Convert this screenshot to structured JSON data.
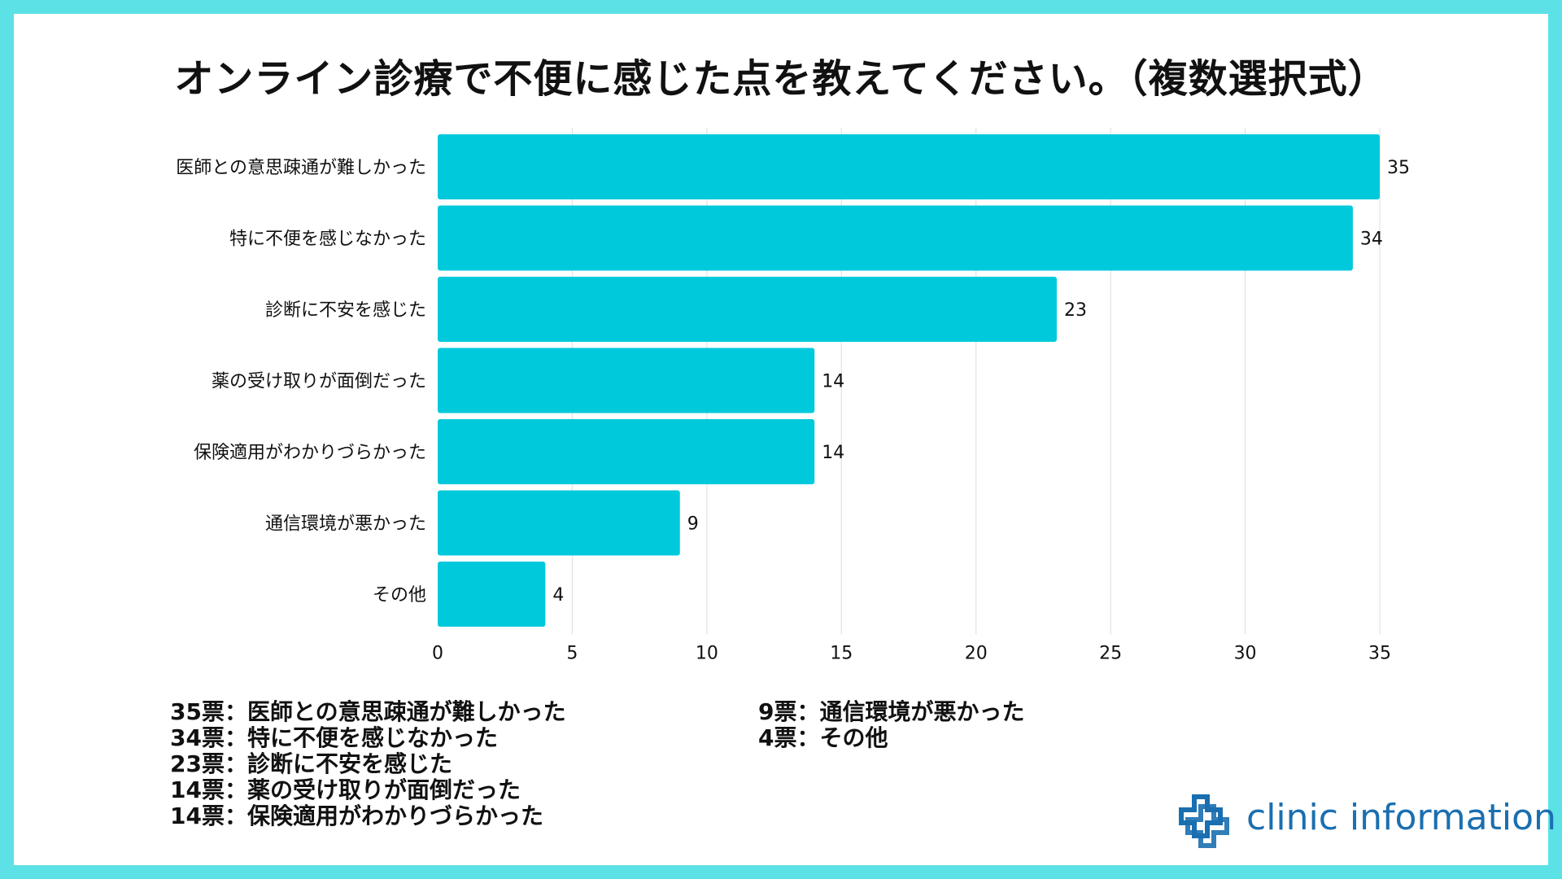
{
  "title": "オンライン診療で不便に感じた点を教えてください。（複数選択式）",
  "colors": {
    "frame": "#5ce1e6",
    "bar": "#00c9dc",
    "grid": "#e2e2e2",
    "text": "#111111",
    "logo": "#1a6fb0"
  },
  "chart_data": {
    "type": "bar",
    "orientation": "horizontal",
    "title": "オンライン診療で不便に感じた点を教えてください。（複数選択式）",
    "categories": [
      "医師との意思疎通が難しかった",
      "特に不便を感じなかった",
      "診断に不安を感じた",
      "薬の受け取りが面倒だった",
      "保険適用がわかりづらかった",
      "通信環境が悪かった",
      "その他"
    ],
    "values": [
      35,
      34,
      23,
      14,
      14,
      9,
      4
    ],
    "xlim": [
      0,
      35
    ],
    "xticks": [
      0,
      5,
      10,
      15,
      20,
      25,
      30,
      35
    ],
    "grid": true,
    "data_labels": true
  },
  "legend": {
    "left": [
      "35票：医師との意思疎通が難しかった",
      "34票：特に不便を感じなかった",
      "23票：診断に不安を感じた",
      "14票：薬の受け取りが面倒だった",
      "14票：保険適用がわかりづらかった"
    ],
    "right": [
      "9票：通信環境が悪かった",
      "4票：その他"
    ]
  },
  "logo": {
    "text": "clinic information",
    "icon": "medical-cross-icon"
  }
}
